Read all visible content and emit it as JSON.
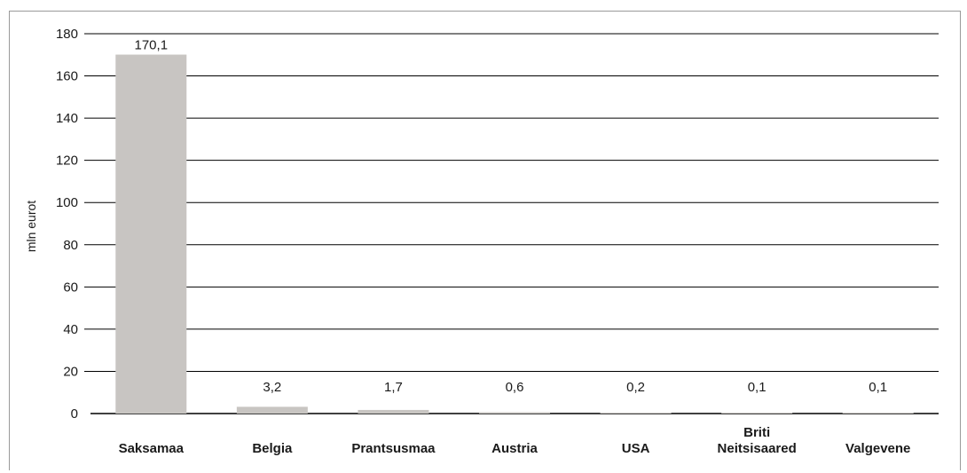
{
  "chart_data": {
    "type": "bar",
    "categories": [
      "Saksamaa",
      "Belgia",
      "Prantsusmaa",
      "Austria",
      "USA",
      "Briti Neitsisaared",
      "Valgevene"
    ],
    "values": [
      170.1,
      3.2,
      1.7,
      0.6,
      0.2,
      0.1,
      0.1
    ],
    "value_labels": [
      "170,1",
      "3,2",
      "1,7",
      "0,6",
      "0,2",
      "0,1",
      "0,1"
    ],
    "category_lines": [
      [
        "Saksamaa"
      ],
      [
        "Belgia"
      ],
      [
        "Prantsusmaa"
      ],
      [
        "Austria"
      ],
      [
        "USA"
      ],
      [
        "Briti",
        "Neitsisaared"
      ],
      [
        "Valgevene"
      ]
    ],
    "ylabel": "mln eurot",
    "ylim": [
      0,
      180
    ],
    "yticks": [
      0,
      20,
      40,
      60,
      80,
      100,
      120,
      140,
      160,
      180
    ],
    "grid": true,
    "bar_color": "#c8c5c2",
    "grid_color": "#000000"
  }
}
